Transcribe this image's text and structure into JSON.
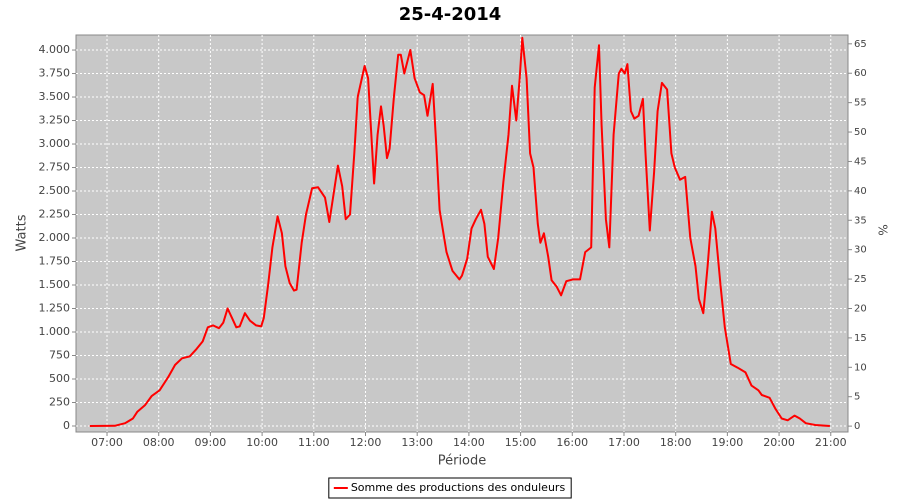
{
  "chart_data": {
    "type": "line",
    "title": "25-4-2014",
    "xlabel": "Période",
    "ylabel": "Watts",
    "y2label": "%",
    "x": [
      "06:40",
      "07:09",
      "07:21",
      "07:30",
      "07:35",
      "07:44",
      "07:52",
      "08:01",
      "08:11",
      "08:19",
      "08:27",
      "08:36",
      "08:44",
      "08:51",
      "08:57",
      "09:03",
      "09:10",
      "09:15",
      "09:20",
      "09:25",
      "09:30",
      "09:34",
      "09:40",
      "09:46",
      "09:53",
      "09:59",
      "10:02",
      "10:07",
      "10:12",
      "10:18",
      "10:23",
      "10:27",
      "10:32",
      "10:37",
      "10:40",
      "10:46",
      "10:51",
      "10:58",
      "11:05",
      "11:13",
      "11:18",
      "11:21",
      "11:28",
      "11:33",
      "11:37",
      "11:42",
      "11:47",
      "11:51",
      "11:59",
      "12:03",
      "12:10",
      "12:14",
      "12:18",
      "12:21",
      "12:25",
      "12:28",
      "12:33",
      "12:38",
      "12:41",
      "12:45",
      "12:52",
      "12:57",
      "13:03",
      "13:08",
      "13:12",
      "13:18",
      "13:22",
      "13:26",
      "13:34",
      "13:41",
      "13:49",
      "13:52",
      "13:58",
      "14:03",
      "14:08",
      "14:14",
      "14:18",
      "14:22",
      "14:29",
      "14:34",
      "14:40",
      "14:46",
      "14:50",
      "14:55",
      "14:59",
      "15:02",
      "15:07",
      "15:11",
      "15:15",
      "15:20",
      "15:23",
      "15:27",
      "15:32",
      "15:36",
      "15:42",
      "15:47",
      "15:53",
      "16:01",
      "16:09",
      "16:15",
      "16:22",
      "16:26",
      "16:31",
      "16:34",
      "16:39",
      "16:43",
      "16:48",
      "16:54",
      "16:57",
      "17:01",
      "17:04",
      "17:08",
      "17:12",
      "17:17",
      "17:22",
      "17:25",
      "17:30",
      "17:35",
      "17:39",
      "17:44",
      "17:50",
      "17:55",
      "17:59",
      "18:05",
      "18:11",
      "18:17",
      "18:23",
      "18:27",
      "18:32",
      "18:37",
      "18:42",
      "18:46",
      "18:52",
      "18:57",
      "19:04",
      "19:12",
      "19:21",
      "19:28",
      "19:36",
      "19:40",
      "19:49",
      "19:56",
      "20:03",
      "20:10",
      "20:18",
      "20:24",
      "20:31",
      "20:42",
      "20:59"
    ],
    "series": [
      {
        "name": "Somme des productions des onduleurs",
        "color": "#ff0000",
        "values": [
          0,
          2,
          30,
          80,
          150,
          220,
          320,
          380,
          520,
          650,
          720,
          740,
          820,
          900,
          1050,
          1070,
          1040,
          1100,
          1250,
          1150,
          1050,
          1060,
          1200,
          1120,
          1070,
          1060,
          1150,
          1500,
          1900,
          2230,
          2050,
          1700,
          1520,
          1440,
          1450,
          1950,
          2250,
          2530,
          2540,
          2430,
          2170,
          2350,
          2770,
          2550,
          2200,
          2250,
          2900,
          3500,
          3830,
          3700,
          2580,
          3100,
          3400,
          3200,
          2850,
          2950,
          3500,
          3950,
          3950,
          3750,
          4000,
          3700,
          3550,
          3520,
          3300,
          3640,
          3000,
          2300,
          1850,
          1650,
          1560,
          1600,
          1780,
          2100,
          2200,
          2300,
          2150,
          1800,
          1670,
          2000,
          2600,
          3100,
          3620,
          3250,
          3700,
          4130,
          3700,
          2900,
          2750,
          2150,
          1950,
          2050,
          1800,
          1550,
          1480,
          1390,
          1540,
          1560,
          1560,
          1850,
          1900,
          3600,
          4050,
          3200,
          2200,
          1900,
          3100,
          3750,
          3800,
          3750,
          3850,
          3350,
          3270,
          3300,
          3480,
          2900,
          2080,
          2700,
          3350,
          3650,
          3580,
          2900,
          2750,
          2620,
          2650,
          2000,
          1700,
          1350,
          1200,
          1700,
          2280,
          2100,
          1500,
          1050,
          660,
          620,
          570,
          430,
          380,
          330,
          300,
          180,
          80,
          60,
          110,
          80,
          30,
          10,
          0
        ]
      }
    ],
    "xlim": [
      "06:24",
      "21:20"
    ],
    "xticks": [
      "07:00",
      "08:00",
      "09:00",
      "10:00",
      "11:00",
      "12:00",
      "13:00",
      "14:00",
      "15:00",
      "16:00",
      "17:00",
      "18:00",
      "19:00",
      "20:00",
      "21:00"
    ],
    "ylim": [
      -64,
      4160
    ],
    "yticks": [
      0,
      250,
      500,
      750,
      {
        "value": 1000,
        "label": "1.000"
      },
      {
        "value": 1250,
        "label": "1.250"
      },
      {
        "value": 1500,
        "label": "1.500"
      },
      {
        "value": 1750,
        "label": "1.750"
      },
      {
        "value": 2000,
        "label": "2.000"
      },
      {
        "value": 2250,
        "label": "2.250"
      },
      {
        "value": 2500,
        "label": "2.500"
      },
      {
        "value": 2750,
        "label": "2.750"
      },
      {
        "value": 3000,
        "label": "3.000"
      },
      {
        "value": 3250,
        "label": "3.250"
      },
      {
        "value": 3500,
        "label": "3.500"
      },
      {
        "value": 3750,
        "label": "3.750"
      },
      {
        "value": 4000,
        "label": "4.000"
      }
    ],
    "y2lim": [
      -1,
      66.5
    ],
    "y2ticks": [
      0,
      5,
      10,
      15,
      20,
      25,
      30,
      35,
      40,
      45,
      50,
      55,
      60,
      65
    ],
    "grid": true,
    "legend": "bottom"
  }
}
